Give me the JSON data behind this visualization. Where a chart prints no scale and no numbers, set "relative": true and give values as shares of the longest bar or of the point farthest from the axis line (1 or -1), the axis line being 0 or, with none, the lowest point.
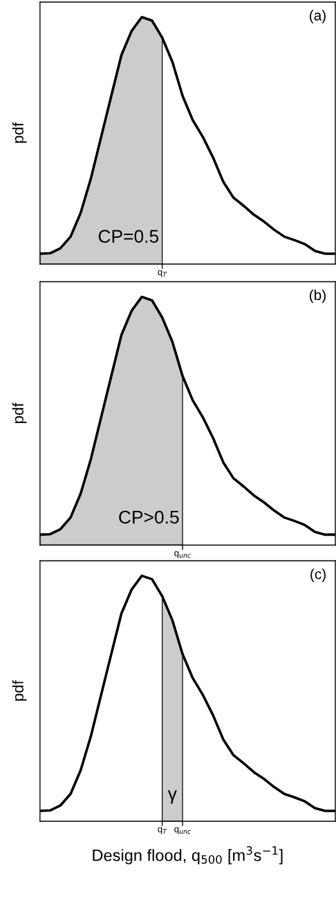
{
  "chart_data": [
    {
      "type": "line",
      "relative": true,
      "ylabel": "pdf",
      "annotations": [
        "(a)",
        "CP=0.5",
        "q$_{T}$"
      ],
      "categories": [
        null,
        null,
        null,
        null,
        null,
        null,
        null,
        null,
        null,
        null,
        null,
        null,
        null,
        null,
        null,
        null,
        null,
        null,
        null,
        null,
        null,
        null,
        null,
        null,
        null,
        null,
        null,
        null,
        null,
        null
      ],
      "series": [
        {
          "type": "area",
          "color": "#cccccc",
          "values": [
            0.042,
            0.044,
            0.064,
            0.111,
            0.208,
            0.347,
            0.514,
            0.681,
            0.847,
            0.944,
            1.0,
            0.986,
            0.917,
            null,
            null,
            null,
            null,
            null,
            null,
            null,
            null,
            null,
            null,
            null,
            null,
            null,
            null,
            null,
            null,
            null
          ]
        },
        {
          "color": "#000000",
          "values": [
            0.042,
            0.044,
            0.064,
            0.111,
            0.208,
            0.347,
            0.514,
            0.681,
            0.847,
            0.944,
            1.0,
            0.986,
            0.917,
            0.819,
            0.681,
            0.583,
            0.514,
            0.431,
            0.333,
            0.269,
            0.236,
            0.2,
            0.172,
            0.139,
            0.111,
            0.097,
            0.081,
            0.053,
            0.042,
            0.042
          ]
        }
      ]
    },
    {
      "type": "line",
      "relative": true,
      "ylabel": "pdf",
      "annotations": [
        "(b)",
        "CP>0.5",
        "q$_{unc}$"
      ],
      "categories": [
        null,
        null,
        null,
        null,
        null,
        null,
        null,
        null,
        null,
        null,
        null,
        null,
        null,
        null,
        null,
        null,
        null,
        null,
        null,
        null,
        null,
        null,
        null,
        null,
        null,
        null,
        null,
        null,
        null,
        null
      ],
      "series": [
        {
          "type": "area",
          "color": "#cccccc",
          "values": [
            0.042,
            0.044,
            0.064,
            0.111,
            0.208,
            0.347,
            0.514,
            0.681,
            0.847,
            0.944,
            1.0,
            0.986,
            0.917,
            0.819,
            0.681,
            null,
            null,
            null,
            null,
            null,
            null,
            null,
            null,
            null,
            null,
            null,
            null,
            null,
            null,
            null
          ]
        },
        {
          "color": "#000000",
          "values": [
            0.042,
            0.044,
            0.064,
            0.111,
            0.208,
            0.347,
            0.514,
            0.681,
            0.847,
            0.944,
            1.0,
            0.986,
            0.917,
            0.819,
            0.681,
            0.583,
            0.514,
            0.431,
            0.333,
            0.269,
            0.236,
            0.2,
            0.172,
            0.139,
            0.111,
            0.097,
            0.081,
            0.053,
            0.042,
            0.042
          ]
        }
      ]
    },
    {
      "type": "line",
      "relative": true,
      "ylabel": "pdf",
      "xlabel": "Design flood, q$_{500}$ [m$^{3}$s$^{−1}$]",
      "annotations": [
        "(c)",
        "γ",
        "q$_{T}$",
        "q$_{unc}$"
      ],
      "categories": [
        null,
        null,
        null,
        null,
        null,
        null,
        null,
        null,
        null,
        null,
        null,
        null,
        null,
        null,
        null,
        null,
        null,
        null,
        null,
        null,
        null,
        null,
        null,
        null,
        null,
        null,
        null,
        null,
        null,
        null
      ],
      "series": [
        {
          "type": "area",
          "color": "#cccccc",
          "values": [
            null,
            null,
            null,
            null,
            null,
            null,
            null,
            null,
            null,
            null,
            null,
            null,
            0.917,
            0.819,
            0.681,
            null,
            null,
            null,
            null,
            null,
            null,
            null,
            null,
            null,
            null,
            null,
            null,
            null,
            null,
            null
          ]
        },
        {
          "color": "#000000",
          "values": [
            0.042,
            0.044,
            0.064,
            0.111,
            0.208,
            0.347,
            0.514,
            0.681,
            0.847,
            0.944,
            1.0,
            0.986,
            0.917,
            0.819,
            0.681,
            0.583,
            0.514,
            0.431,
            0.333,
            0.269,
            0.236,
            0.2,
            0.172,
            0.139,
            0.111,
            0.097,
            0.081,
            0.053,
            0.042,
            0.042
          ]
        }
      ]
    }
  ]
}
